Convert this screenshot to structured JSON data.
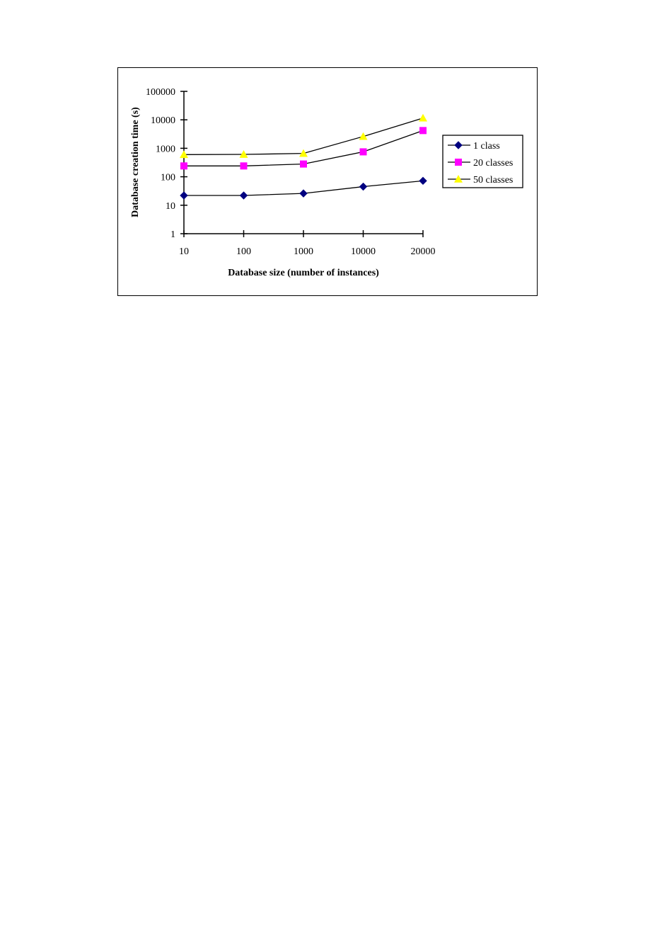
{
  "chart_data": {
    "type": "line",
    "title": "",
    "xlabel": "Database size (number of instances)",
    "ylabel": "Database creation time (s)",
    "categories": [
      "10",
      "100",
      "1000",
      "10000",
      "20000"
    ],
    "yscale": "log",
    "ylim": [
      1,
      100000
    ],
    "yticks": [
      "1",
      "10",
      "100",
      "1000",
      "10000",
      "100000"
    ],
    "grid": false,
    "legend_position": "right",
    "series": [
      {
        "name": "1 class",
        "values": [
          22,
          22,
          26,
          45,
          72
        ],
        "color": "#000080",
        "marker": "diamond"
      },
      {
        "name": "20 classes",
        "values": [
          240,
          240,
          280,
          750,
          4200
        ],
        "color": "#ff00ff",
        "marker": "square"
      },
      {
        "name": "50 classes",
        "values": [
          600,
          610,
          660,
          2600,
          11500
        ],
        "color": "#ffff00",
        "marker": "triangle"
      }
    ]
  }
}
